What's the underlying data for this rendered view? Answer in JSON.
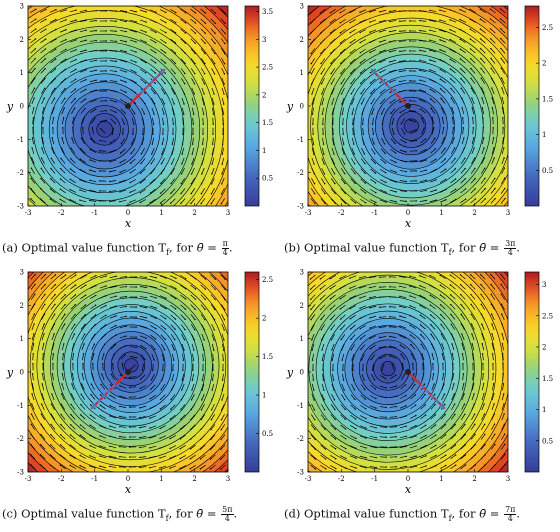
{
  "panels": [
    {
      "id": "a",
      "caption_label": "(a)",
      "caption_text": "Optimal value function T",
      "caption_sub": "f",
      "caption_for": ", for",
      "caption_theta": "θ̄ =",
      "caption_num": "π",
      "caption_den": "4",
      "xlabel": "x",
      "ylabel": "y",
      "colorbar_ticks": [
        "3.5",
        "3",
        "2.5",
        "2",
        "1.5",
        "1",
        "0.5"
      ],
      "colorbar_values": [
        3.5,
        3,
        2.5,
        2,
        1.5,
        1,
        0.5
      ],
      "cmax": 3.6,
      "center": [
        -0.7,
        -0.7
      ],
      "theta": 0.785
    },
    {
      "id": "b",
      "caption_label": "(b)",
      "caption_text": "Optimal value function T",
      "caption_sub": "f",
      "caption_for": ", for",
      "caption_theta": "θ̄ =",
      "caption_num": "3π",
      "caption_den": "4",
      "xlabel": "x",
      "ylabel": "y",
      "colorbar_ticks": [
        "2.5",
        "2",
        "1.5",
        "1",
        "0.5"
      ],
      "colorbar_values": [
        2.5,
        2,
        1.5,
        1,
        0.5
      ],
      "cmax": 2.8,
      "center": [
        0.1,
        -0.6
      ],
      "theta": 2.356
    },
    {
      "id": "c",
      "caption_label": "(c)",
      "caption_text": "Optimal value function T",
      "caption_sub": "f",
      "caption_for": ", for",
      "caption_theta": "θ̄ =",
      "caption_num": "5π",
      "caption_den": "4",
      "xlabel": "x",
      "ylabel": "y",
      "colorbar_ticks": [
        "2.5",
        "2",
        "1.5",
        "1",
        "0.5"
      ],
      "colorbar_values": [
        2.5,
        2,
        1.5,
        1,
        0.5
      ],
      "cmax": 2.6,
      "center": [
        0.1,
        0.2
      ],
      "theta": 3.927
    },
    {
      "id": "d",
      "caption_label": "(d)",
      "caption_text": "Optimal value function T",
      "caption_sub": "f",
      "caption_for": ", for",
      "caption_theta": "θ̄ =",
      "caption_num": "7π",
      "caption_den": "4",
      "xlabel": "x",
      "ylabel": "y",
      "colorbar_ticks": [
        "3",
        "2.5",
        "2",
        "1.5",
        "1",
        "0.5"
      ],
      "colorbar_values": [
        3,
        2.5,
        2,
        1.5,
        1,
        0.5
      ],
      "cmax": 3.2,
      "center": [
        -0.6,
        0.1
      ],
      "theta": 5.498
    }
  ],
  "axis_ticks": [
    "-3",
    "-2",
    "-1",
    "0",
    "1",
    "2",
    "3"
  ],
  "axis_values": [
    -3,
    -2,
    -1,
    0,
    1,
    2,
    3
  ],
  "colors": {
    "arrow_red": "#d62728",
    "arrow_blue": "#4a78c8",
    "contour": "#000000"
  }
}
